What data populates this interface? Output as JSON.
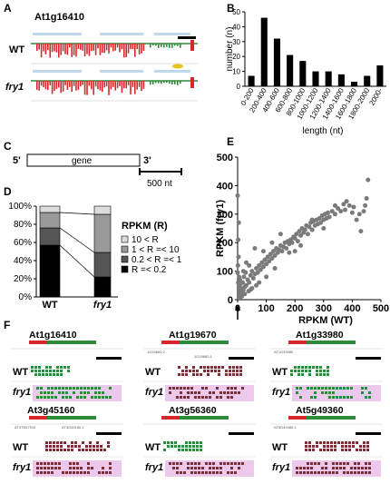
{
  "panels": {
    "A": {
      "letter": "A",
      "gene": "At1g16410",
      "rows": [
        "WT",
        "fry1"
      ]
    },
    "B": {
      "letter": "B"
    },
    "C": {
      "letter": "C",
      "five_prime": "5'",
      "three_prime": "3'",
      "gene_label": "gene",
      "scale_label": "500 nt"
    },
    "D": {
      "letter": "D"
    },
    "E": {
      "letter": "E"
    },
    "F": {
      "letter": "F"
    }
  },
  "chart_B": {
    "type": "bar",
    "categories": [
      "0-200",
      "200-400",
      "400-600",
      "600-800",
      "800-1000",
      "1000-1200",
      "1200-1400",
      "1400-1600",
      "1600-1800",
      "1800-2000",
      "2000-"
    ],
    "values": [
      7,
      46,
      32,
      21,
      17,
      10,
      10,
      8,
      3,
      7,
      14
    ],
    "xlabel": "length (nt)",
    "ylabel": "number (n)",
    "ylim": [
      0,
      50
    ],
    "yticks": [
      "0",
      "10",
      "20",
      "30",
      "40",
      "50"
    ],
    "grid": false
  },
  "chart_D": {
    "type": "bar",
    "categories": [
      "WT",
      "fry1"
    ],
    "yticks": [
      "0%",
      "20%",
      "40%",
      "60%",
      "80%",
      "100%"
    ],
    "legend_title": "RPKM (R)",
    "series": [
      {
        "name": "R =< 0.2",
        "color": "#000000",
        "values": [
          57,
          22
        ]
      },
      {
        "name": "0.2 < R =< 1",
        "color": "#555555",
        "values": [
          19,
          27
        ]
      },
      {
        "name": "1 < R =< 10",
        "color": "#9a9a9a",
        "values": [
          17,
          42
        ]
      },
      {
        "name": "10 < R",
        "color": "#dcdcdc",
        "values": [
          7,
          9
        ]
      }
    ],
    "legend_order": [
      "10 < R",
      "1 < R =< 10",
      "0.2 < R =< 1",
      "R =< 0.2"
    ]
  },
  "chart_E": {
    "type": "scatter",
    "xlabel": "RPKM (WT)",
    "ylabel": "RPKM (fry1)",
    "xlim": [
      0,
      500
    ],
    "ylim": [
      0,
      500
    ],
    "xticks": [
      "0",
      "100",
      "200",
      "300",
      "400",
      "500"
    ],
    "yticks": [
      "0",
      "100",
      "200",
      "300",
      "400",
      "500"
    ],
    "points": [
      [
        0,
        365
      ],
      [
        2,
        210
      ],
      [
        4,
        270
      ],
      [
        3,
        150
      ],
      [
        1,
        120
      ],
      [
        0,
        95
      ],
      [
        5,
        80
      ],
      [
        2,
        60
      ],
      [
        8,
        70
      ],
      [
        10,
        55
      ],
      [
        12,
        40
      ],
      [
        6,
        30
      ],
      [
        15,
        25
      ],
      [
        20,
        35
      ],
      [
        18,
        60
      ],
      [
        25,
        45
      ],
      [
        30,
        50
      ],
      [
        22,
        80
      ],
      [
        28,
        95
      ],
      [
        35,
        70
      ],
      [
        40,
        60
      ],
      [
        45,
        85
      ],
      [
        50,
        100
      ],
      [
        55,
        75
      ],
      [
        60,
        90
      ],
      [
        65,
        110
      ],
      [
        70,
        95
      ],
      [
        75,
        120
      ],
      [
        80,
        105
      ],
      [
        85,
        130
      ],
      [
        90,
        115
      ],
      [
        95,
        140
      ],
      [
        100,
        125
      ],
      [
        105,
        150
      ],
      [
        110,
        135
      ],
      [
        115,
        160
      ],
      [
        120,
        145
      ],
      [
        125,
        170
      ],
      [
        130,
        155
      ],
      [
        135,
        180
      ],
      [
        140,
        165
      ],
      [
        145,
        175
      ],
      [
        150,
        190
      ],
      [
        155,
        170
      ],
      [
        160,
        185
      ],
      [
        165,
        200
      ],
      [
        170,
        180
      ],
      [
        175,
        205
      ],
      [
        180,
        195
      ],
      [
        185,
        210
      ],
      [
        190,
        200
      ],
      [
        195,
        220
      ],
      [
        200,
        215
      ],
      [
        205,
        230
      ],
      [
        210,
        205
      ],
      [
        215,
        240
      ],
      [
        220,
        225
      ],
      [
        225,
        250
      ],
      [
        230,
        235
      ],
      [
        235,
        245
      ],
      [
        240,
        260
      ],
      [
        245,
        230
      ],
      [
        250,
        255
      ],
      [
        255,
        270
      ],
      [
        260,
        245
      ],
      [
        265,
        275
      ],
      [
        270,
        260
      ],
      [
        275,
        280
      ],
      [
        280,
        265
      ],
      [
        285,
        285
      ],
      [
        290,
        270
      ],
      [
        295,
        295
      ],
      [
        300,
        280
      ],
      [
        305,
        300
      ],
      [
        310,
        285
      ],
      [
        315,
        305
      ],
      [
        320,
        290
      ],
      [
        330,
        310
      ],
      [
        340,
        300
      ],
      [
        350,
        320
      ],
      [
        360,
        310
      ],
      [
        370,
        335
      ],
      [
        375,
        315
      ],
      [
        380,
        345
      ],
      [
        390,
        330
      ],
      [
        400,
        305
      ],
      [
        405,
        325
      ],
      [
        415,
        280
      ],
      [
        425,
        300
      ],
      [
        440,
        310
      ],
      [
        445,
        330
      ],
      [
        450,
        355
      ],
      [
        455,
        420
      ],
      [
        430,
        240
      ],
      [
        220,
        190
      ],
      [
        180,
        165
      ],
      [
        60,
        180
      ],
      [
        40,
        120
      ],
      [
        30,
        130
      ],
      [
        20,
        100
      ],
      [
        90,
        170
      ],
      [
        120,
        200
      ],
      [
        150,
        230
      ],
      [
        260,
        280
      ],
      [
        300,
        250
      ],
      [
        340,
        330
      ],
      [
        200,
        170
      ],
      [
        100,
        80
      ],
      [
        130,
        110
      ],
      [
        75,
        60
      ],
      [
        50,
        40
      ],
      [
        38,
        30
      ],
      [
        15,
        12
      ],
      [
        10,
        8
      ],
      [
        25,
        20
      ],
      [
        45,
        35
      ],
      [
        65,
        50
      ]
    ],
    "arrow_at": 0
  },
  "panel_F": {
    "tracks": [
      {
        "gene": "At1g16410",
        "rows": [
          "WT",
          "fry1"
        ],
        "annotations": []
      },
      {
        "gene": "At1g19670",
        "rows": [
          "WT",
          "fry1"
        ],
        "annotations": [
          "1G19660.2",
          "1G19660.1"
        ]
      },
      {
        "gene": "At1g33980",
        "rows": [
          "WT",
          "fry1"
        ],
        "annotations": [
          "AT1G33980"
        ]
      },
      {
        "gene": "At3g45160",
        "rows": [
          "WT",
          "fry1"
        ],
        "annotations": [
          "AT3TE67910",
          "AT3G45160.1"
        ]
      },
      {
        "gene": "At3g56360",
        "rows": [
          "WT",
          "fry1"
        ],
        "annotations": []
      },
      {
        "gene": "At5g49360",
        "rows": [
          "WT",
          "fry1"
        ],
        "annotations": [
          "AT5G49360.1"
        ]
      }
    ]
  },
  "colors": {
    "red": "#d9262c",
    "green": "#2e8b3a",
    "pink": "#ecc8ec",
    "lightblue": "#bcd8ea",
    "maroon": "#7a2f34",
    "gray": "#7a7a7a"
  }
}
